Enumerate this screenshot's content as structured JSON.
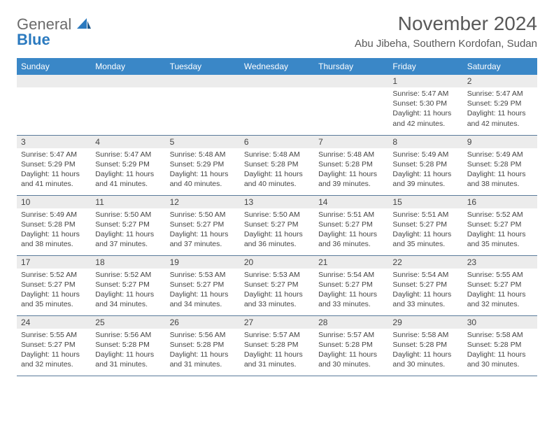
{
  "brand": {
    "part1": "General",
    "part2": "Blue"
  },
  "title": "November 2024",
  "location": "Abu Jibeha, Southern Kordofan, Sudan",
  "colors": {
    "header_bg": "#3a87c7",
    "header_text": "#ffffff",
    "daynum_bg": "#ececec",
    "border": "#5a7a9a",
    "title_color": "#595959",
    "brand_blue": "#2b7abf"
  },
  "weekdays": [
    "Sunday",
    "Monday",
    "Tuesday",
    "Wednesday",
    "Thursday",
    "Friday",
    "Saturday"
  ],
  "layout": {
    "columns": 7,
    "rows": 5,
    "first_day_column": 5
  },
  "days": [
    {
      "n": 1,
      "sunrise": "5:47 AM",
      "sunset": "5:30 PM",
      "daylight": "11 hours and 42 minutes."
    },
    {
      "n": 2,
      "sunrise": "5:47 AM",
      "sunset": "5:29 PM",
      "daylight": "11 hours and 42 minutes."
    },
    {
      "n": 3,
      "sunrise": "5:47 AM",
      "sunset": "5:29 PM",
      "daylight": "11 hours and 41 minutes."
    },
    {
      "n": 4,
      "sunrise": "5:47 AM",
      "sunset": "5:29 PM",
      "daylight": "11 hours and 41 minutes."
    },
    {
      "n": 5,
      "sunrise": "5:48 AM",
      "sunset": "5:29 PM",
      "daylight": "11 hours and 40 minutes."
    },
    {
      "n": 6,
      "sunrise": "5:48 AM",
      "sunset": "5:28 PM",
      "daylight": "11 hours and 40 minutes."
    },
    {
      "n": 7,
      "sunrise": "5:48 AM",
      "sunset": "5:28 PM",
      "daylight": "11 hours and 39 minutes."
    },
    {
      "n": 8,
      "sunrise": "5:49 AM",
      "sunset": "5:28 PM",
      "daylight": "11 hours and 39 minutes."
    },
    {
      "n": 9,
      "sunrise": "5:49 AM",
      "sunset": "5:28 PM",
      "daylight": "11 hours and 38 minutes."
    },
    {
      "n": 10,
      "sunrise": "5:49 AM",
      "sunset": "5:28 PM",
      "daylight": "11 hours and 38 minutes."
    },
    {
      "n": 11,
      "sunrise": "5:50 AM",
      "sunset": "5:27 PM",
      "daylight": "11 hours and 37 minutes."
    },
    {
      "n": 12,
      "sunrise": "5:50 AM",
      "sunset": "5:27 PM",
      "daylight": "11 hours and 37 minutes."
    },
    {
      "n": 13,
      "sunrise": "5:50 AM",
      "sunset": "5:27 PM",
      "daylight": "11 hours and 36 minutes."
    },
    {
      "n": 14,
      "sunrise": "5:51 AM",
      "sunset": "5:27 PM",
      "daylight": "11 hours and 36 minutes."
    },
    {
      "n": 15,
      "sunrise": "5:51 AM",
      "sunset": "5:27 PM",
      "daylight": "11 hours and 35 minutes."
    },
    {
      "n": 16,
      "sunrise": "5:52 AM",
      "sunset": "5:27 PM",
      "daylight": "11 hours and 35 minutes."
    },
    {
      "n": 17,
      "sunrise": "5:52 AM",
      "sunset": "5:27 PM",
      "daylight": "11 hours and 35 minutes."
    },
    {
      "n": 18,
      "sunrise": "5:52 AM",
      "sunset": "5:27 PM",
      "daylight": "11 hours and 34 minutes."
    },
    {
      "n": 19,
      "sunrise": "5:53 AM",
      "sunset": "5:27 PM",
      "daylight": "11 hours and 34 minutes."
    },
    {
      "n": 20,
      "sunrise": "5:53 AM",
      "sunset": "5:27 PM",
      "daylight": "11 hours and 33 minutes."
    },
    {
      "n": 21,
      "sunrise": "5:54 AM",
      "sunset": "5:27 PM",
      "daylight": "11 hours and 33 minutes."
    },
    {
      "n": 22,
      "sunrise": "5:54 AM",
      "sunset": "5:27 PM",
      "daylight": "11 hours and 33 minutes."
    },
    {
      "n": 23,
      "sunrise": "5:55 AM",
      "sunset": "5:27 PM",
      "daylight": "11 hours and 32 minutes."
    },
    {
      "n": 24,
      "sunrise": "5:55 AM",
      "sunset": "5:27 PM",
      "daylight": "11 hours and 32 minutes."
    },
    {
      "n": 25,
      "sunrise": "5:56 AM",
      "sunset": "5:28 PM",
      "daylight": "11 hours and 31 minutes."
    },
    {
      "n": 26,
      "sunrise": "5:56 AM",
      "sunset": "5:28 PM",
      "daylight": "11 hours and 31 minutes."
    },
    {
      "n": 27,
      "sunrise": "5:57 AM",
      "sunset": "5:28 PM",
      "daylight": "11 hours and 31 minutes."
    },
    {
      "n": 28,
      "sunrise": "5:57 AM",
      "sunset": "5:28 PM",
      "daylight": "11 hours and 30 minutes."
    },
    {
      "n": 29,
      "sunrise": "5:58 AM",
      "sunset": "5:28 PM",
      "daylight": "11 hours and 30 minutes."
    },
    {
      "n": 30,
      "sunrise": "5:58 AM",
      "sunset": "5:28 PM",
      "daylight": "11 hours and 30 minutes."
    }
  ],
  "labels": {
    "sunrise": "Sunrise:",
    "sunset": "Sunset:",
    "daylight": "Daylight:"
  }
}
